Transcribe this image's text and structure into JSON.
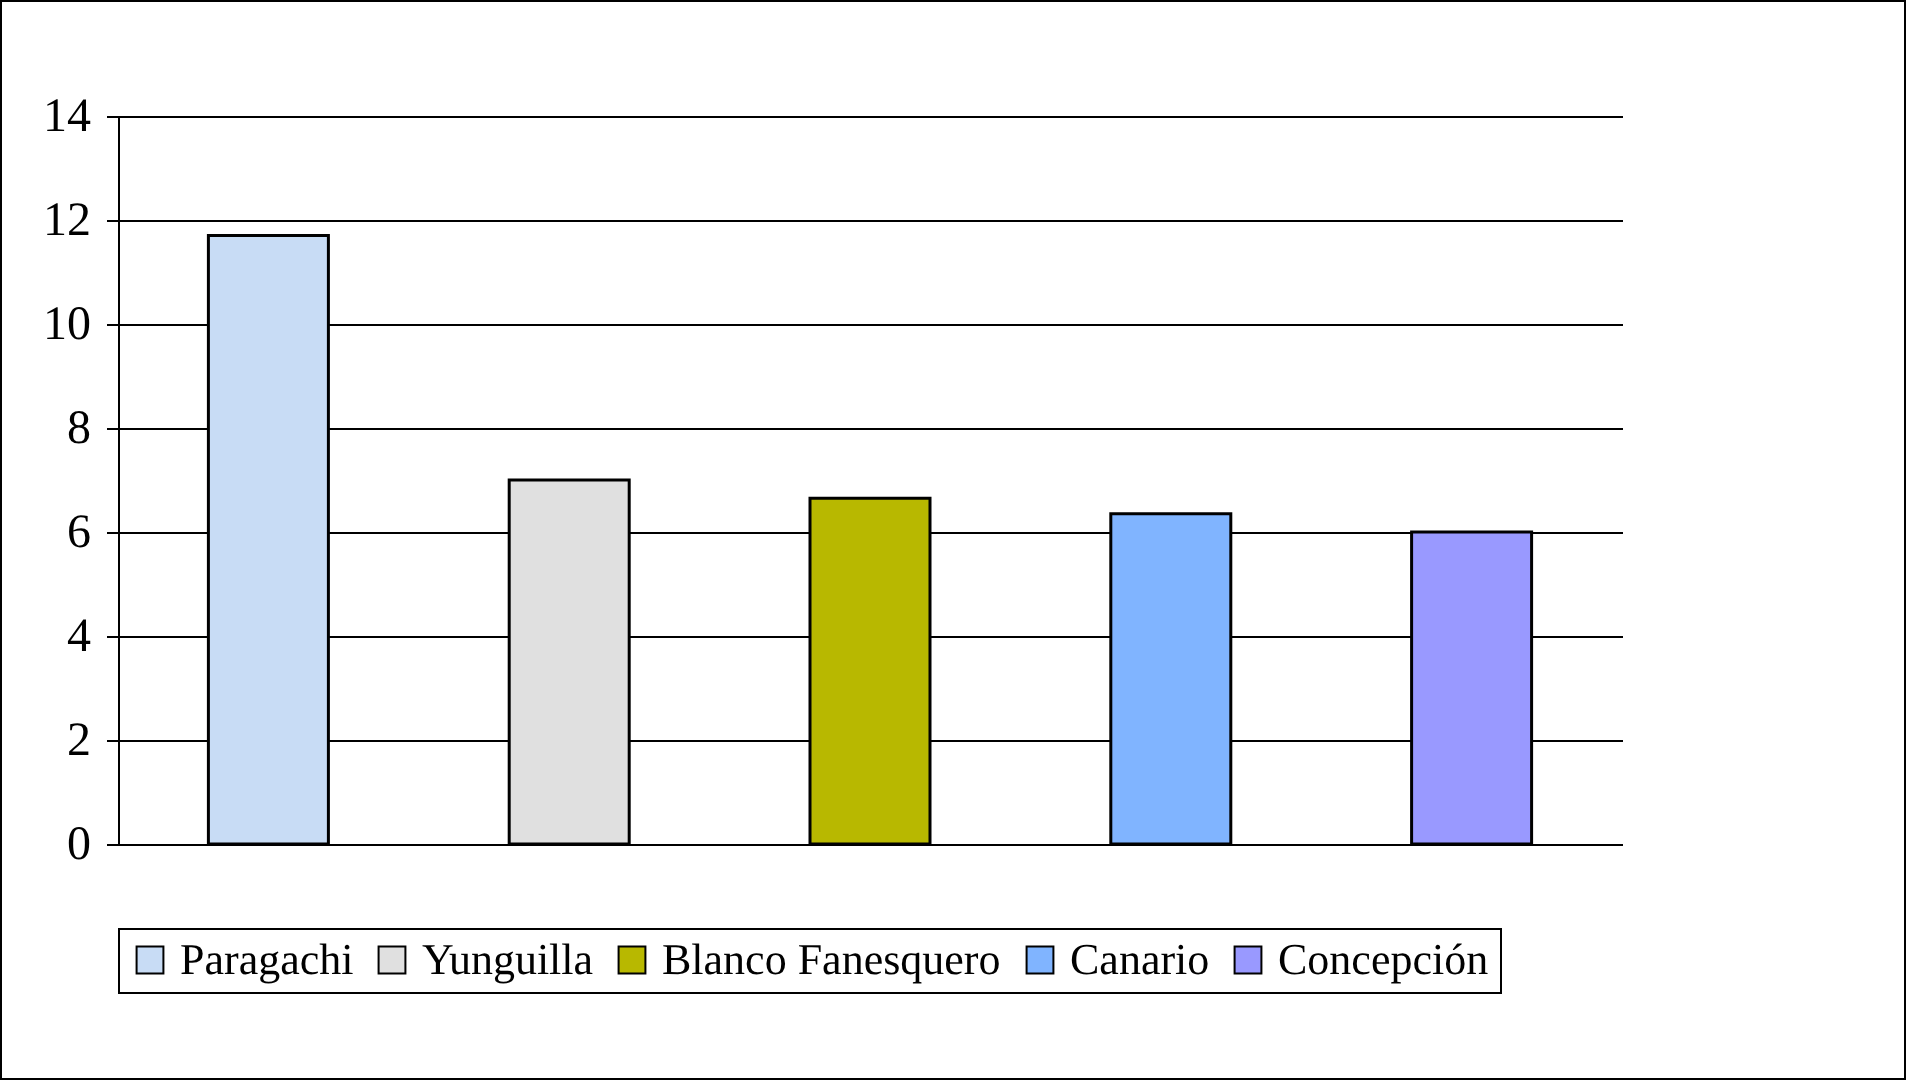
{
  "chart_data": {
    "type": "bar",
    "categories": [
      null,
      null,
      null,
      null,
      null
    ],
    "series": [
      {
        "name": "Paragachi",
        "color": "#c8dcf5",
        "values": [
          11.7,
          null,
          null,
          null,
          null
        ]
      },
      {
        "name": "Yunguilla",
        "color": "#e0e0e0",
        "values": [
          null,
          7.0,
          null,
          null,
          null
        ]
      },
      {
        "name": "Blanco Fanesquero",
        "color": "#b8b800",
        "values": [
          null,
          null,
          6.65,
          null,
          null
        ]
      },
      {
        "name": "Canario",
        "color": "#80b4ff",
        "values": [
          null,
          null,
          null,
          6.35,
          null
        ]
      },
      {
        "name": "Concepción",
        "color": "#9999ff",
        "values": [
          null,
          null,
          null,
          null,
          6.0
        ]
      }
    ],
    "ylim": [
      0,
      14
    ],
    "yticks": [
      0,
      2,
      4,
      6,
      8,
      10,
      12,
      14
    ],
    "grid": "y",
    "legend": "bottom"
  }
}
